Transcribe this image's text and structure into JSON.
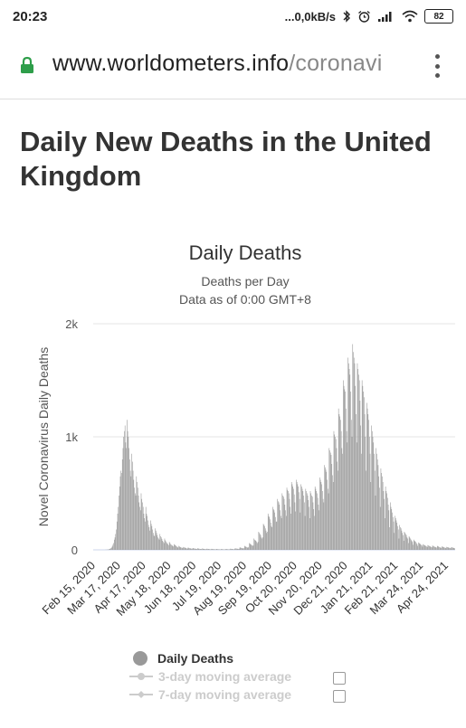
{
  "status_bar": {
    "time": "20:23",
    "network_speed": "...0,0kB/s",
    "battery": "82"
  },
  "browser": {
    "url_domain": "www.worldometers.info",
    "url_path": "/coronavi"
  },
  "page": {
    "title": "Daily New Deaths in the United Kingdom"
  },
  "chart_data": {
    "type": "bar",
    "title": "Daily Deaths",
    "subtitle_1": "Deaths per Day",
    "subtitle_2": "Data as of 0:00 GMT+8",
    "ylabel": "Novel Coronavirus Daily Deaths",
    "ylim": [
      0,
      2000
    ],
    "y_ticks": [
      "0",
      "1k",
      "2k"
    ],
    "x_tick_labels": [
      "Feb 15, 2020",
      "Mar 17, 2020",
      "Apr 17, 2020",
      "May 18, 2020",
      "Jun 18, 2020",
      "Jul 19, 2020",
      "Aug 19, 2020",
      "Sep 19, 2020",
      "Oct 20, 2020",
      "Nov 20, 2020",
      "Dec 21, 2020",
      "Jan 21, 2021",
      "Feb 21, 2021",
      "Mar 24, 2021",
      "Apr 24, 2021"
    ],
    "series_name": "Daily Deaths",
    "weekly_profile": [
      [
        0,
        0,
        0,
        0,
        0,
        0,
        0
      ],
      [
        0,
        0,
        0,
        0,
        0,
        0,
        0
      ],
      [
        0,
        0,
        0,
        0,
        1,
        1,
        2
      ],
      [
        2,
        3,
        5,
        8,
        10,
        15,
        20
      ],
      [
        30,
        45,
        60,
        90,
        110,
        140,
        180
      ],
      [
        250,
        320,
        380,
        480,
        560,
        650,
        700
      ],
      [
        680,
        800,
        900,
        1000,
        1050,
        1100,
        950
      ],
      [
        900,
        1150,
        1050,
        1000,
        900,
        800,
        700
      ],
      [
        650,
        850,
        780,
        700,
        620,
        550,
        500
      ],
      [
        480,
        650,
        600,
        550,
        480,
        420,
        380
      ],
      [
        350,
        500,
        450,
        420,
        380,
        320,
        280
      ],
      [
        250,
        380,
        320,
        300,
        260,
        220,
        200
      ],
      [
        170,
        260,
        230,
        210,
        180,
        150,
        130
      ],
      [
        120,
        190,
        170,
        150,
        130,
        110,
        100
      ],
      [
        90,
        140,
        120,
        110,
        95,
        80,
        70
      ],
      [
        60,
        100,
        85,
        75,
        65,
        55,
        50
      ],
      [
        40,
        70,
        60,
        50,
        45,
        40,
        35
      ],
      [
        30,
        50,
        45,
        40,
        35,
        30,
        25
      ],
      [
        20,
        35,
        30,
        25,
        22,
        20,
        18
      ],
      [
        15,
        25,
        22,
        20,
        18,
        15,
        12
      ],
      [
        12,
        20,
        18,
        15,
        14,
        12,
        10
      ],
      [
        10,
        16,
        14,
        12,
        11,
        10,
        9
      ],
      [
        8,
        14,
        12,
        10,
        9,
        8,
        7
      ],
      [
        7,
        12,
        10,
        9,
        8,
        7,
        6
      ],
      [
        6,
        10,
        9,
        8,
        7,
        6,
        5
      ],
      [
        5,
        9,
        8,
        7,
        6,
        5,
        5
      ],
      [
        4,
        8,
        7,
        6,
        5,
        5,
        4
      ],
      [
        4,
        7,
        6,
        6,
        5,
        4,
        4
      ],
      [
        4,
        8,
        7,
        6,
        5,
        5,
        4
      ],
      [
        5,
        10,
        9,
        8,
        7,
        6,
        5
      ],
      [
        7,
        14,
        12,
        11,
        10,
        9,
        8
      ],
      [
        10,
        22,
        20,
        18,
        16,
        14,
        12
      ],
      [
        15,
        35,
        30,
        28,
        25,
        22,
        18
      ],
      [
        25,
        60,
        55,
        50,
        45,
        40,
        35
      ],
      [
        40,
        100,
        90,
        85,
        80,
        70,
        60
      ],
      [
        70,
        160,
        150,
        140,
        130,
        110,
        100
      ],
      [
        110,
        230,
        220,
        210,
        190,
        170,
        150
      ],
      [
        160,
        320,
        300,
        290,
        270,
        240,
        210
      ],
      [
        200,
        380,
        360,
        350,
        330,
        290,
        250
      ],
      [
        250,
        450,
        430,
        420,
        400,
        350,
        300
      ],
      [
        280,
        500,
        480,
        470,
        450,
        400,
        350
      ],
      [
        300,
        550,
        530,
        520,
        500,
        450,
        380
      ],
      [
        320,
        600,
        580,
        560,
        540,
        490,
        420
      ],
      [
        340,
        620,
        600,
        580,
        560,
        510,
        450
      ],
      [
        330,
        580,
        560,
        540,
        520,
        480,
        420
      ],
      [
        300,
        540,
        520,
        500,
        480,
        440,
        380
      ],
      [
        280,
        520,
        500,
        480,
        470,
        420,
        360
      ],
      [
        300,
        560,
        540,
        520,
        500,
        460,
        400
      ],
      [
        350,
        640,
        620,
        600,
        580,
        520,
        450
      ],
      [
        420,
        750,
        730,
        710,
        690,
        620,
        540
      ],
      [
        500,
        900,
        880,
        860,
        840,
        760,
        660
      ],
      [
        600,
        1050,
        1020,
        1000,
        980,
        900,
        780
      ],
      [
        700,
        1250,
        1200,
        1180,
        1150,
        1050,
        900
      ],
      [
        850,
        1500,
        1450,
        1420,
        1400,
        1250,
        1050
      ],
      [
        950,
        1700,
        1650,
        1600,
        1550,
        1400,
        1150
      ],
      [
        1000,
        1820,
        1750,
        1700,
        1650,
        1450,
        1200
      ],
      [
        950,
        1650,
        1600,
        1550,
        1500,
        1320,
        1100
      ],
      [
        850,
        1500,
        1450,
        1400,
        1350,
        1200,
        1000
      ],
      [
        700,
        1300,
        1250,
        1200,
        1150,
        1000,
        850
      ],
      [
        600,
        1100,
        1050,
        1000,
        950,
        850,
        700
      ],
      [
        480,
        900,
        850,
        800,
        750,
        650,
        550
      ],
      [
        380,
        720,
        680,
        650,
        600,
        520,
        450
      ],
      [
        280,
        560,
        520,
        500,
        460,
        400,
        350
      ],
      [
        200,
        420,
        380,
        360,
        330,
        290,
        250
      ],
      [
        150,
        300,
        280,
        260,
        240,
        210,
        180
      ],
      [
        100,
        220,
        200,
        190,
        170,
        150,
        130
      ],
      [
        80,
        160,
        150,
        140,
        130,
        110,
        100
      ],
      [
        60,
        120,
        110,
        100,
        90,
        80,
        70
      ],
      [
        45,
        90,
        80,
        75,
        70,
        60,
        50
      ],
      [
        35,
        65,
        60,
        55,
        50,
        45,
        40
      ],
      [
        28,
        50,
        45,
        42,
        38,
        34,
        30
      ],
      [
        25,
        42,
        38,
        35,
        32,
        28,
        25
      ],
      [
        22,
        38,
        34,
        30,
        28,
        25,
        22
      ],
      [
        20,
        35,
        32,
        28,
        25,
        22,
        20
      ],
      [
        18,
        30,
        28,
        25,
        22,
        20,
        18
      ],
      [
        15,
        26,
        24,
        22,
        20,
        18,
        16
      ],
      [
        14,
        24,
        22,
        20,
        18,
        16,
        14
      ]
    ]
  },
  "legend": {
    "daily_deaths": "Daily Deaths",
    "avg3": "3-day moving average",
    "avg7": "7-day moving average"
  },
  "colors": {
    "bar": "#999999",
    "lock": "#2e9e4a",
    "legend_disabled": "#cccccc"
  }
}
